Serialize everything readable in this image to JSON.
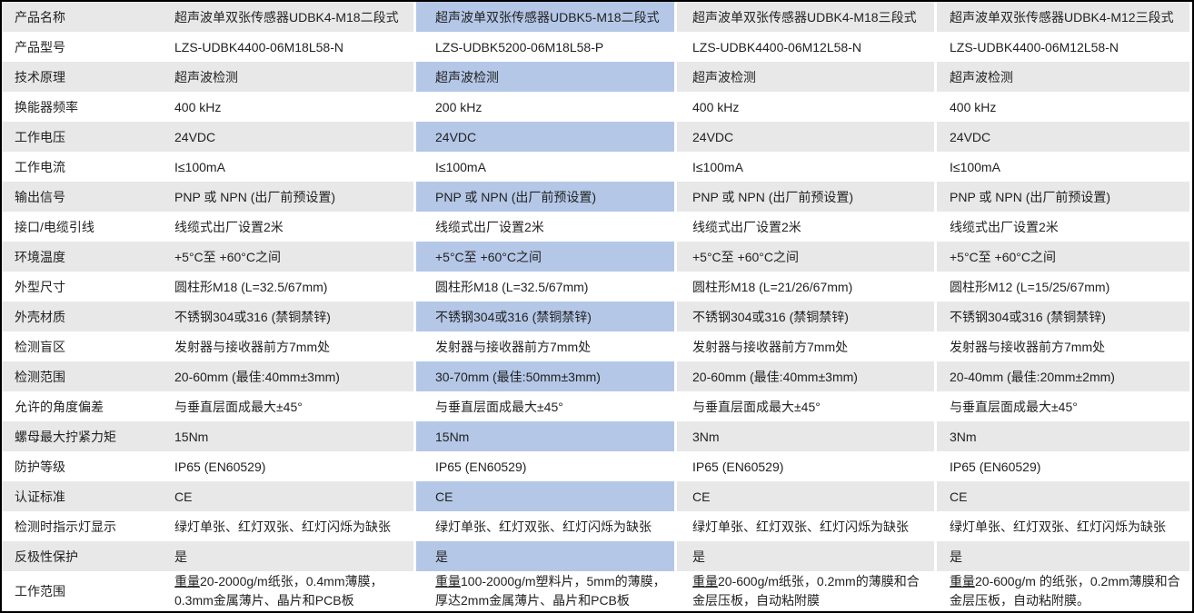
{
  "colors": {
    "highlight_column": "#b4c7e7",
    "row_stripe": "#e8e8e8",
    "outer_border": "#000000",
    "text": "#222222"
  },
  "table": {
    "row_labels": [
      "产品名称",
      "产品型号",
      "技术原理",
      "换能器频率",
      "工作电压",
      "工作电流",
      "输出信号",
      "接口/电缆引线",
      "环境温度",
      "外型尺寸",
      "外壳材质",
      "检测盲区",
      "检测范围",
      "允许的角度偏差",
      "螺母最大拧紧力矩",
      "防护等级",
      "认证标准",
      "检测时指示灯显示",
      "反极性保护",
      "工作范围"
    ],
    "products": [
      {
        "highlighted": false,
        "values": [
          "超声波单双张传感器UDBK4-M18二段式",
          "LZS-UDBK4400-06M18L58-N",
          "超声波检测",
          "400 kHz",
          "24VDC",
          "I≤100mA",
          "PNP 或 NPN (出厂前预设置)",
          "线缆式出厂设置2米",
          "+5°C至 +60°C之间",
          "圆柱形M18 (L=32.5/67mm)",
          "不锈钢304或316 (禁铜禁锌)",
          "发射器与接收器前方7mm处",
          "20-60mm (最佳:40mm±3mm)",
          "与垂直层面成最大±45°",
          "15Nm",
          "IP65 (EN60529)",
          "CE",
          "绿灯单张、红灯双张、红灯闪烁为缺张",
          "是"
        ],
        "work_range": {
          "prefix": "重量",
          "rest": "20-2000g/m纸张，0.4mm薄膜，0.3mm金属薄片、晶片和PCB板"
        }
      },
      {
        "highlighted": true,
        "values": [
          "超声波单双张传感器UDBK5-M18二段式",
          "LZS-UDBK5200-06M18L58-P",
          "超声波检测",
          "200 kHz",
          "24VDC",
          "I≤100mA",
          "PNP 或 NPN (出厂前预设置)",
          "线缆式出厂设置2米",
          "+5°C至 +60°C之间",
          "圆柱形M18 (L=32.5/67mm)",
          "不锈钢304或316 (禁铜禁锌)",
          "发射器与接收器前方7mm处",
          "30-70mm (最佳:50mm±3mm)",
          "与垂直层面成最大±45°",
          "15Nm",
          "IP65 (EN60529)",
          "CE",
          "绿灯单张、红灯双张、红灯闪烁为缺张",
          "是"
        ],
        "work_range": {
          "prefix": "重量",
          "rest": "100-2000g/m塑料片，5mm的薄膜，厚达2mm金属薄片、晶片和PCB板"
        }
      },
      {
        "highlighted": false,
        "values": [
          "超声波单双张传感器UDBK4-M18三段式",
          "LZS-UDBK4400-06M12L58-N",
          "超声波检测",
          "400 kHz",
          "24VDC",
          "I≤100mA",
          "PNP 或 NPN (出厂前预设置)",
          "线缆式出厂设置2米",
          "+5°C至 +60°C之间",
          "圆柱形M18 (L=21/26/67mm)",
          "不锈钢304或316 (禁铜禁锌)",
          "发射器与接收器前方7mm处",
          "20-60mm (最佳:40mm±3mm)",
          "与垂直层面成最大±45°",
          "3Nm",
          "IP65 (EN60529)",
          "CE",
          "绿灯单张、红灯双张、红灯闪烁为缺张",
          "是"
        ],
        "work_range": {
          "prefix": "重量",
          "rest": "20-600g/m纸张，0.2mm的薄膜和合金层压板，自动粘附膜"
        }
      },
      {
        "highlighted": false,
        "values": [
          "超声波单双张传感器UDBK4-M12三段式",
          "LZS-UDBK4400-06M12L58-N",
          "超声波检测",
          "400 kHz",
          "24VDC",
          "I≤100mA",
          "PNP 或 NPN (出厂前预设置)",
          "线缆式出厂设置2米",
          "+5°C至 +60°C之间",
          "圆柱形M12 (L=15/25/67mm)",
          "不锈钢304或316 (禁铜禁锌)",
          "发射器与接收器前方7mm处",
          "20-40mm (最佳:20mm±2mm)",
          "与垂直层面成最大±45°",
          "3Nm",
          "IP65 (EN60529)",
          "CE",
          "绿灯单张、红灯双张、红灯闪烁为缺张",
          "是"
        ],
        "work_range": {
          "prefix": "重量",
          "rest": "20-600g/m 的纸张，0.2mm薄膜和合金层压板，自动粘附膜。"
        }
      }
    ]
  }
}
